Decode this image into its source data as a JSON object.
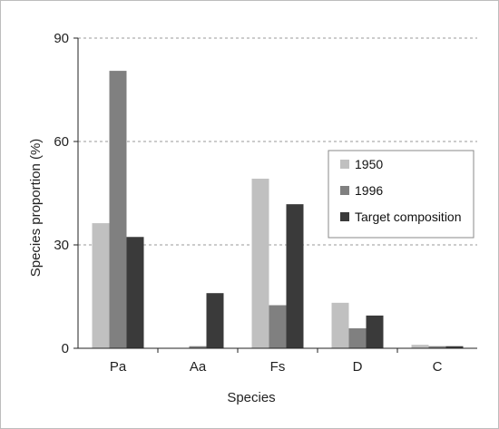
{
  "chart_data": {
    "type": "bar",
    "title": "",
    "xlabel": "Species",
    "ylabel": "Species proportion (%)",
    "categories": [
      "Pa",
      "Aa",
      "Fs",
      "D",
      "C"
    ],
    "series": [
      {
        "name": "1950",
        "values": [
          36.3,
          0,
          49.2,
          13.2,
          1.0
        ],
        "color": "#c0c0c0"
      },
      {
        "name": "1996",
        "values": [
          80.5,
          0.6,
          12.5,
          5.8,
          0.6
        ],
        "color": "#808080"
      },
      {
        "name": "Target composition",
        "values": [
          32.3,
          16.0,
          41.8,
          9.5,
          0.6
        ],
        "color": "#3a3a3a"
      }
    ],
    "ylim": [
      0,
      90
    ],
    "yticks": [
      0,
      30,
      60,
      90
    ],
    "grid": true,
    "grid_style": "dashed",
    "legend_position": "right"
  }
}
